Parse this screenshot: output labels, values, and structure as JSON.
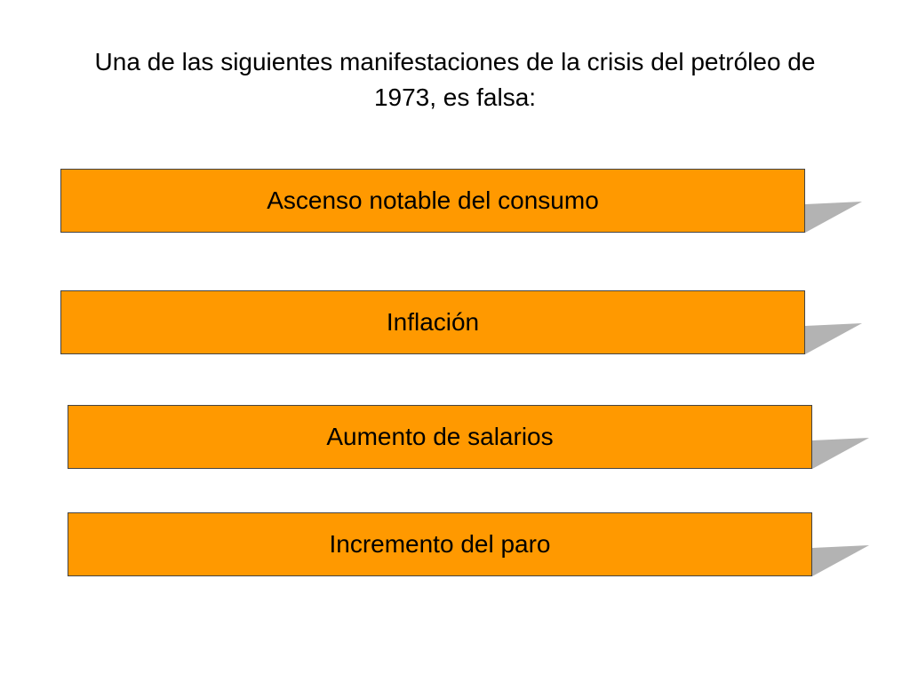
{
  "question": {
    "line1": "Una de las siguientes manifestaciones de la crisis del petróleo de",
    "line2": "1973, es falsa:"
  },
  "options": [
    {
      "label": "Ascenso notable del consumo"
    },
    {
      "label": "Inflación"
    },
    {
      "label": "Aumento de salarios"
    },
    {
      "label": "Incremento del paro"
    }
  ],
  "colors": {
    "option_fill": "#ff9900",
    "option_border": "#444444",
    "shadow": "#b3b3b3"
  }
}
